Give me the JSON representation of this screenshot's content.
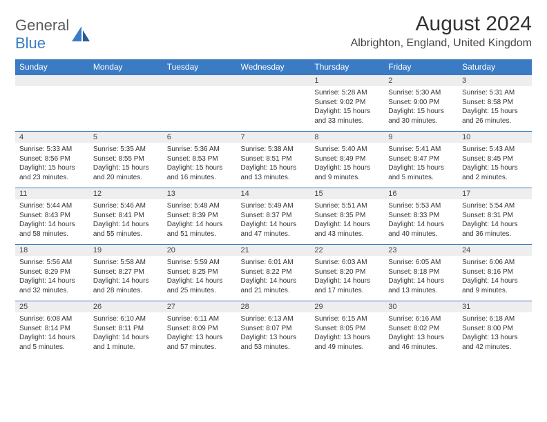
{
  "logo": {
    "text1": "General",
    "text2": "Blue"
  },
  "title": "August 2024",
  "location": "Albrighton, England, United Kingdom",
  "colors": {
    "header_bg": "#3a7bc4",
    "header_text": "#ffffff",
    "daynum_bg": "#eeeeee",
    "border": "#3a7bc4",
    "logo_gray": "#5a5a5a",
    "logo_blue": "#3a7bc4",
    "body_text": "#333333",
    "page_bg": "#ffffff"
  },
  "fonts": {
    "title_size": 30,
    "location_size": 16,
    "header_size": 12,
    "daynum_size": 11,
    "cell_size": 10
  },
  "dayHeaders": [
    "Sunday",
    "Monday",
    "Tuesday",
    "Wednesday",
    "Thursday",
    "Friday",
    "Saturday"
  ],
  "weeks": [
    [
      null,
      null,
      null,
      null,
      {
        "n": "1",
        "sr": "5:28 AM",
        "ss": "9:02 PM",
        "dl": "15 hours and 33 minutes."
      },
      {
        "n": "2",
        "sr": "5:30 AM",
        "ss": "9:00 PM",
        "dl": "15 hours and 30 minutes."
      },
      {
        "n": "3",
        "sr": "5:31 AM",
        "ss": "8:58 PM",
        "dl": "15 hours and 26 minutes."
      }
    ],
    [
      {
        "n": "4",
        "sr": "5:33 AM",
        "ss": "8:56 PM",
        "dl": "15 hours and 23 minutes."
      },
      {
        "n": "5",
        "sr": "5:35 AM",
        "ss": "8:55 PM",
        "dl": "15 hours and 20 minutes."
      },
      {
        "n": "6",
        "sr": "5:36 AM",
        "ss": "8:53 PM",
        "dl": "15 hours and 16 minutes."
      },
      {
        "n": "7",
        "sr": "5:38 AM",
        "ss": "8:51 PM",
        "dl": "15 hours and 13 minutes."
      },
      {
        "n": "8",
        "sr": "5:40 AM",
        "ss": "8:49 PM",
        "dl": "15 hours and 9 minutes."
      },
      {
        "n": "9",
        "sr": "5:41 AM",
        "ss": "8:47 PM",
        "dl": "15 hours and 5 minutes."
      },
      {
        "n": "10",
        "sr": "5:43 AM",
        "ss": "8:45 PM",
        "dl": "15 hours and 2 minutes."
      }
    ],
    [
      {
        "n": "11",
        "sr": "5:44 AM",
        "ss": "8:43 PM",
        "dl": "14 hours and 58 minutes."
      },
      {
        "n": "12",
        "sr": "5:46 AM",
        "ss": "8:41 PM",
        "dl": "14 hours and 55 minutes."
      },
      {
        "n": "13",
        "sr": "5:48 AM",
        "ss": "8:39 PM",
        "dl": "14 hours and 51 minutes."
      },
      {
        "n": "14",
        "sr": "5:49 AM",
        "ss": "8:37 PM",
        "dl": "14 hours and 47 minutes."
      },
      {
        "n": "15",
        "sr": "5:51 AM",
        "ss": "8:35 PM",
        "dl": "14 hours and 43 minutes."
      },
      {
        "n": "16",
        "sr": "5:53 AM",
        "ss": "8:33 PM",
        "dl": "14 hours and 40 minutes."
      },
      {
        "n": "17",
        "sr": "5:54 AM",
        "ss": "8:31 PM",
        "dl": "14 hours and 36 minutes."
      }
    ],
    [
      {
        "n": "18",
        "sr": "5:56 AM",
        "ss": "8:29 PM",
        "dl": "14 hours and 32 minutes."
      },
      {
        "n": "19",
        "sr": "5:58 AM",
        "ss": "8:27 PM",
        "dl": "14 hours and 28 minutes."
      },
      {
        "n": "20",
        "sr": "5:59 AM",
        "ss": "8:25 PM",
        "dl": "14 hours and 25 minutes."
      },
      {
        "n": "21",
        "sr": "6:01 AM",
        "ss": "8:22 PM",
        "dl": "14 hours and 21 minutes."
      },
      {
        "n": "22",
        "sr": "6:03 AM",
        "ss": "8:20 PM",
        "dl": "14 hours and 17 minutes."
      },
      {
        "n": "23",
        "sr": "6:05 AM",
        "ss": "8:18 PM",
        "dl": "14 hours and 13 minutes."
      },
      {
        "n": "24",
        "sr": "6:06 AM",
        "ss": "8:16 PM",
        "dl": "14 hours and 9 minutes."
      }
    ],
    [
      {
        "n": "25",
        "sr": "6:08 AM",
        "ss": "8:14 PM",
        "dl": "14 hours and 5 minutes."
      },
      {
        "n": "26",
        "sr": "6:10 AM",
        "ss": "8:11 PM",
        "dl": "14 hours and 1 minute."
      },
      {
        "n": "27",
        "sr": "6:11 AM",
        "ss": "8:09 PM",
        "dl": "13 hours and 57 minutes."
      },
      {
        "n": "28",
        "sr": "6:13 AM",
        "ss": "8:07 PM",
        "dl": "13 hours and 53 minutes."
      },
      {
        "n": "29",
        "sr": "6:15 AM",
        "ss": "8:05 PM",
        "dl": "13 hours and 49 minutes."
      },
      {
        "n": "30",
        "sr": "6:16 AM",
        "ss": "8:02 PM",
        "dl": "13 hours and 46 minutes."
      },
      {
        "n": "31",
        "sr": "6:18 AM",
        "ss": "8:00 PM",
        "dl": "13 hours and 42 minutes."
      }
    ]
  ],
  "labels": {
    "sunrise": "Sunrise:",
    "sunset": "Sunset:",
    "daylight": "Daylight:"
  }
}
